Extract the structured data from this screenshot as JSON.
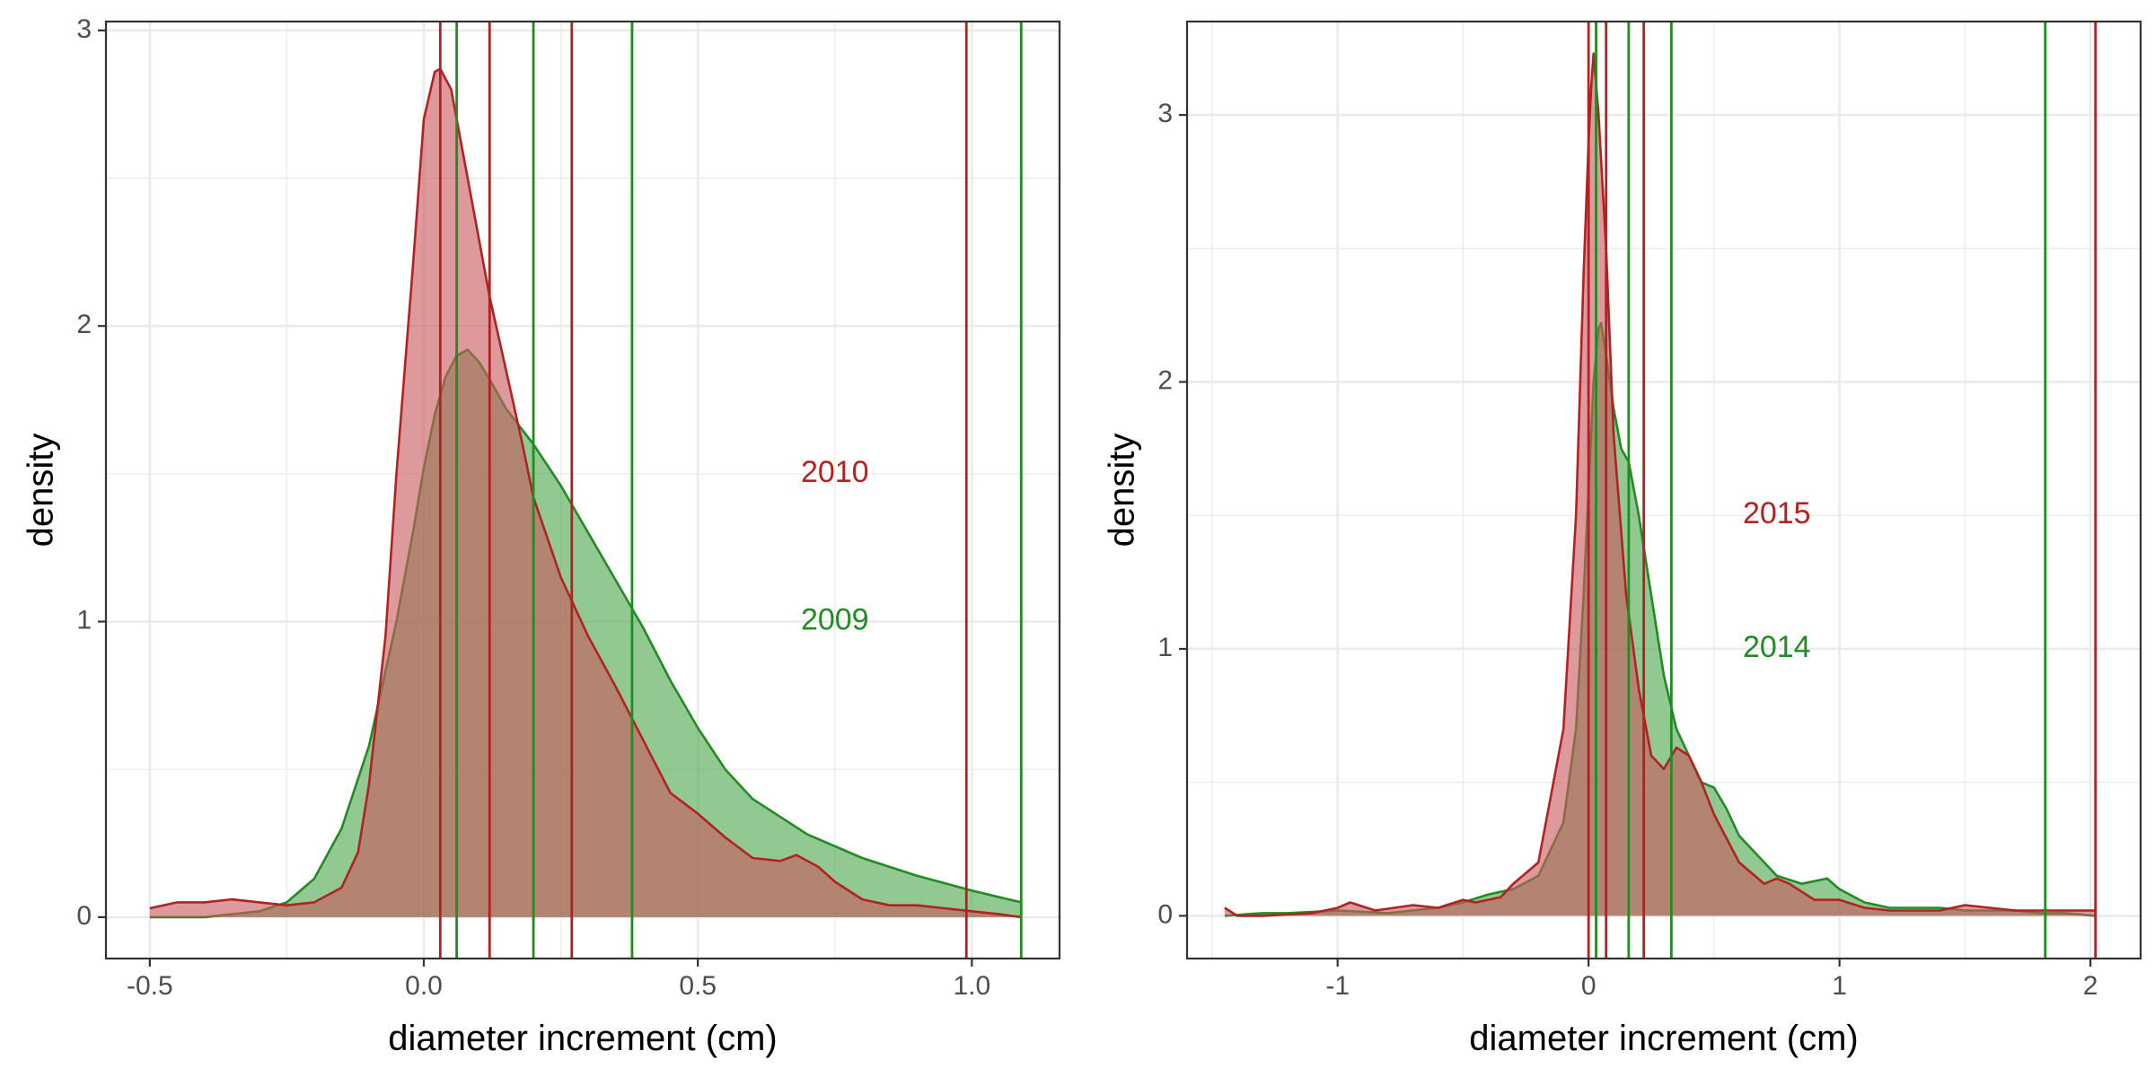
{
  "colors": {
    "series_a": "#b22222",
    "series_b": "#228b22",
    "fill_a": "#c85a5f",
    "fill_b": "#4fa84f",
    "grid": "#ebebeb",
    "panel_border": "#333333",
    "tick_text": "#4d4d4d"
  },
  "chart_data": [
    {
      "type": "area",
      "xlabel": "diameter increment (cm)",
      "ylabel": "density",
      "xlim": [
        -0.58,
        1.16
      ],
      "ylim": [
        -0.14,
        3.03
      ],
      "x_ticks": [
        {
          "value": -0.5,
          "label": "-0.5"
        },
        {
          "value": 0.0,
          "label": "0.0"
        },
        {
          "value": 0.5,
          "label": "0.5"
        },
        {
          "value": 1.0,
          "label": "1.0"
        }
      ],
      "y_ticks": [
        {
          "value": 0,
          "label": "0"
        },
        {
          "value": 1,
          "label": "1"
        },
        {
          "value": 2,
          "label": "2"
        },
        {
          "value": 3,
          "label": "3"
        }
      ],
      "grid": true,
      "series": [
        {
          "name": "2009",
          "color_key": "series_b",
          "x": [
            -0.5,
            -0.4,
            -0.3,
            -0.25,
            -0.2,
            -0.15,
            -0.1,
            -0.05,
            -0.02,
            0.0,
            0.02,
            0.04,
            0.06,
            0.08,
            0.1,
            0.12,
            0.15,
            0.2,
            0.25,
            0.3,
            0.35,
            0.4,
            0.45,
            0.5,
            0.55,
            0.6,
            0.7,
            0.8,
            0.9,
            1.0,
            1.09
          ],
          "y": [
            0.0,
            0.0,
            0.02,
            0.05,
            0.13,
            0.3,
            0.58,
            1.0,
            1.3,
            1.52,
            1.7,
            1.83,
            1.9,
            1.92,
            1.88,
            1.82,
            1.72,
            1.6,
            1.46,
            1.3,
            1.14,
            0.98,
            0.8,
            0.64,
            0.5,
            0.4,
            0.28,
            0.2,
            0.14,
            0.09,
            0.05
          ]
        },
        {
          "name": "2010",
          "color_key": "series_a",
          "x": [
            -0.5,
            -0.45,
            -0.4,
            -0.35,
            -0.3,
            -0.25,
            -0.2,
            -0.15,
            -0.12,
            -0.1,
            -0.07,
            -0.05,
            -0.02,
            0.0,
            0.02,
            0.03,
            0.05,
            0.07,
            0.1,
            0.12,
            0.15,
            0.18,
            0.2,
            0.25,
            0.3,
            0.35,
            0.4,
            0.45,
            0.5,
            0.55,
            0.6,
            0.65,
            0.68,
            0.72,
            0.75,
            0.8,
            0.85,
            0.9,
            0.95,
            1.0,
            1.05,
            1.09
          ],
          "y": [
            0.03,
            0.05,
            0.05,
            0.06,
            0.05,
            0.04,
            0.05,
            0.1,
            0.22,
            0.45,
            0.95,
            1.5,
            2.2,
            2.7,
            2.86,
            2.87,
            2.8,
            2.6,
            2.3,
            2.1,
            1.85,
            1.6,
            1.42,
            1.15,
            0.95,
            0.78,
            0.6,
            0.42,
            0.35,
            0.27,
            0.2,
            0.19,
            0.21,
            0.17,
            0.12,
            0.06,
            0.04,
            0.04,
            0.03,
            0.02,
            0.01,
            0.0
          ]
        }
      ],
      "reference_lines": [
        {
          "series": "2010",
          "color_key": "series_a",
          "x": [
            0.03,
            0.12,
            0.27,
            0.99
          ]
        },
        {
          "series": "2009",
          "color_key": "series_b",
          "x": [
            0.06,
            0.2,
            0.38,
            1.09
          ]
        }
      ],
      "annotations": [
        {
          "text": "2010",
          "x": 0.75,
          "y": 1.5,
          "color_key": "series_a"
        },
        {
          "text": "2009",
          "x": 0.75,
          "y": 1.0,
          "color_key": "series_b"
        }
      ]
    },
    {
      "type": "area",
      "xlabel": "diameter increment (cm)",
      "ylabel": "density",
      "xlim": [
        -1.6,
        2.2
      ],
      "ylim": [
        -0.16,
        3.35
      ],
      "x_ticks": [
        {
          "value": -1,
          "label": "-1"
        },
        {
          "value": 0,
          "label": "0"
        },
        {
          "value": 1,
          "label": "1"
        },
        {
          "value": 2,
          "label": "2"
        }
      ],
      "y_ticks": [
        {
          "value": 0,
          "label": "0"
        },
        {
          "value": 1,
          "label": "1"
        },
        {
          "value": 2,
          "label": "2"
        },
        {
          "value": 3,
          "label": "3"
        }
      ],
      "grid": true,
      "series": [
        {
          "name": "2014",
          "color_key": "series_b",
          "x": [
            -1.45,
            -1.3,
            -1.2,
            -1.0,
            -0.8,
            -0.6,
            -0.5,
            -0.4,
            -0.3,
            -0.2,
            -0.1,
            -0.05,
            -0.02,
            0.0,
            0.02,
            0.04,
            0.05,
            0.07,
            0.1,
            0.13,
            0.16,
            0.2,
            0.25,
            0.3,
            0.35,
            0.4,
            0.45,
            0.5,
            0.55,
            0.6,
            0.7,
            0.75,
            0.85,
            0.95,
            1.0,
            1.1,
            1.2,
            1.3,
            1.4,
            1.5,
            1.7,
            1.8,
            1.9,
            2.02
          ],
          "y": [
            0.0,
            0.01,
            0.01,
            0.02,
            0.01,
            0.03,
            0.05,
            0.08,
            0.1,
            0.15,
            0.35,
            0.7,
            1.2,
            1.6,
            2.0,
            2.2,
            2.22,
            2.1,
            1.9,
            1.75,
            1.7,
            1.5,
            1.2,
            0.9,
            0.7,
            0.6,
            0.5,
            0.48,
            0.4,
            0.3,
            0.2,
            0.15,
            0.12,
            0.14,
            0.1,
            0.05,
            0.03,
            0.03,
            0.03,
            0.02,
            0.02,
            0.01,
            0.01,
            0.0
          ]
        },
        {
          "name": "2015",
          "color_key": "series_a",
          "x": [
            -1.45,
            -1.4,
            -1.3,
            -1.1,
            -1.0,
            -0.95,
            -0.85,
            -0.7,
            -0.6,
            -0.5,
            -0.45,
            -0.35,
            -0.3,
            -0.2,
            -0.1,
            -0.05,
            -0.02,
            0.0,
            0.01,
            0.02,
            0.04,
            0.07,
            0.1,
            0.15,
            0.2,
            0.25,
            0.3,
            0.35,
            0.4,
            0.45,
            0.5,
            0.6,
            0.7,
            0.75,
            0.8,
            0.9,
            1.0,
            1.1,
            1.2,
            1.3,
            1.4,
            1.5,
            1.6,
            1.7,
            1.8,
            1.9,
            2.02
          ],
          "y": [
            0.03,
            0.0,
            0.0,
            0.01,
            0.03,
            0.05,
            0.02,
            0.04,
            0.03,
            0.06,
            0.05,
            0.07,
            0.12,
            0.2,
            0.7,
            1.5,
            2.4,
            2.9,
            3.1,
            3.23,
            3.0,
            2.5,
            1.8,
            1.2,
            0.85,
            0.6,
            0.55,
            0.63,
            0.6,
            0.5,
            0.38,
            0.2,
            0.12,
            0.14,
            0.12,
            0.06,
            0.06,
            0.03,
            0.02,
            0.02,
            0.02,
            0.04,
            0.03,
            0.02,
            0.02,
            0.02,
            0.02
          ]
        }
      ],
      "reference_lines": [
        {
          "series": "2015",
          "color_key": "series_a",
          "x": [
            0.0,
            0.07,
            0.22,
            2.02
          ]
        },
        {
          "series": "2014",
          "color_key": "series_b",
          "x": [
            0.03,
            0.16,
            0.33,
            1.82
          ]
        }
      ],
      "annotations": [
        {
          "text": "2015",
          "x": 0.75,
          "y": 1.5,
          "color_key": "series_a"
        },
        {
          "text": "2014",
          "x": 0.75,
          "y": 1.0,
          "color_key": "series_b"
        }
      ]
    }
  ]
}
